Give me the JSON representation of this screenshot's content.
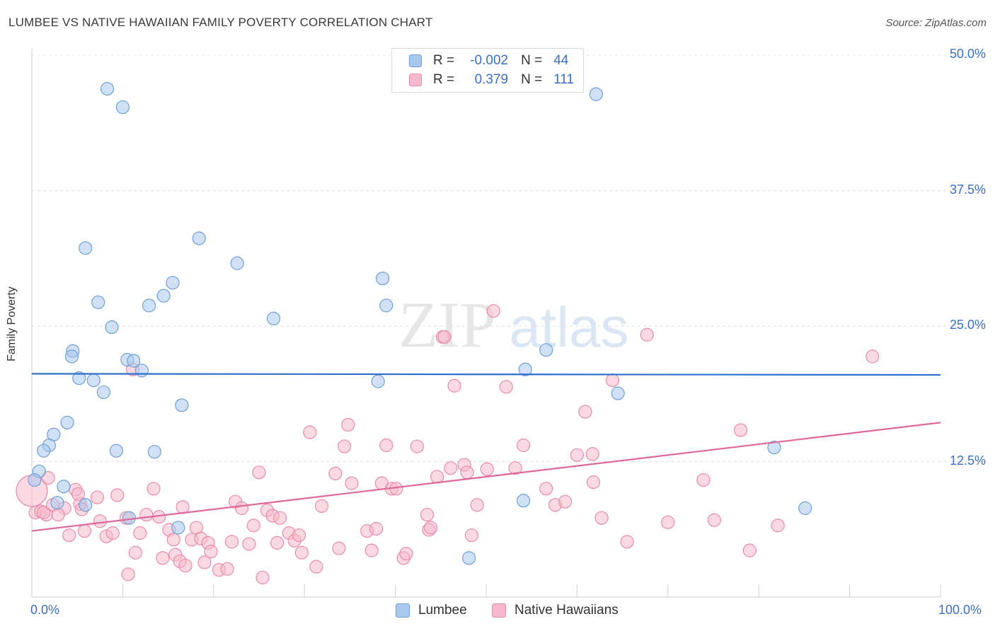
{
  "title": "LUMBEE VS NATIVE HAWAIIAN FAMILY POVERTY CORRELATION CHART",
  "source": "Source: ZipAtlas.com",
  "watermark_a": "ZIP",
  "watermark_b": "atlas",
  "legend": {
    "r_label": "R =",
    "n_label": "N =",
    "series": [
      {
        "name": "Lumbee",
        "r": "-0.002",
        "n": "44"
      },
      {
        "name": "Native Hawaiians",
        "r": "0.379",
        "n": "111"
      }
    ]
  },
  "chart_data": {
    "type": "scatter",
    "title": "LUMBEE VS NATIVE HAWAIIAN FAMILY POVERTY CORRELATION CHART",
    "xlabel": "",
    "ylabel": "Family Poverty",
    "xlim": [
      0,
      100
    ],
    "ylim": [
      0,
      50
    ],
    "x_tick_labels": [
      "0.0%",
      "100.0%"
    ],
    "y_ticks": [
      12.5,
      25.0,
      37.5,
      50.0
    ],
    "y_tick_labels": [
      "12.5%",
      "25.0%",
      "37.5%",
      "50.0%"
    ],
    "grid": true,
    "legend_position": "top-center",
    "colors": {
      "Lumbee": {
        "fill": "#a9c8ee",
        "stroke": "#6f9fd8",
        "line": "#2f6fcf"
      },
      "Native Hawaiians": {
        "fill": "#f6b9cc",
        "stroke": "#e98aa8",
        "line": "#e0679a"
      }
    },
    "series": [
      {
        "name": "Lumbee",
        "trend": {
          "x": [
            0,
            100
          ],
          "y": [
            20.6,
            20.5
          ]
        },
        "points": [
          [
            8.3,
            46.9
          ],
          [
            10.0,
            45.2
          ],
          [
            62.1,
            46.4
          ],
          [
            5.9,
            32.2
          ],
          [
            18.4,
            33.1
          ],
          [
            22.6,
            30.8
          ],
          [
            38.6,
            29.4
          ],
          [
            7.3,
            27.2
          ],
          [
            15.5,
            29.0
          ],
          [
            14.5,
            27.8
          ],
          [
            12.9,
            26.9
          ],
          [
            26.6,
            25.7
          ],
          [
            39.0,
            26.9
          ],
          [
            8.8,
            24.9
          ],
          [
            4.5,
            22.7
          ],
          [
            4.4,
            22.2
          ],
          [
            10.5,
            21.9
          ],
          [
            11.2,
            21.8
          ],
          [
            12.1,
            20.9
          ],
          [
            54.3,
            21.0
          ],
          [
            56.6,
            22.8
          ],
          [
            5.2,
            20.2
          ],
          [
            6.8,
            20.0
          ],
          [
            38.1,
            19.9
          ],
          [
            7.9,
            18.9
          ],
          [
            64.5,
            18.8
          ],
          [
            16.5,
            17.7
          ],
          [
            3.9,
            16.1
          ],
          [
            2.4,
            15.0
          ],
          [
            1.9,
            14.0
          ],
          [
            1.3,
            13.5
          ],
          [
            9.3,
            13.5
          ],
          [
            13.5,
            13.4
          ],
          [
            81.7,
            13.8
          ],
          [
            0.8,
            11.6
          ],
          [
            0.3,
            10.8
          ],
          [
            3.5,
            10.2
          ],
          [
            2.8,
            8.7
          ],
          [
            5.9,
            8.5
          ],
          [
            10.7,
            7.3
          ],
          [
            16.1,
            6.4
          ],
          [
            54.1,
            8.9
          ],
          [
            85.1,
            8.2
          ],
          [
            48.1,
            3.6
          ]
        ]
      },
      {
        "name": "Native Hawaiians",
        "trend": {
          "x": [
            0,
            100
          ],
          "y": [
            6.1,
            16.1
          ]
        },
        "points": [
          [
            0.0,
            9.8
          ],
          [
            0.4,
            7.8
          ],
          [
            1.0,
            7.9
          ],
          [
            1.6,
            7.6
          ],
          [
            1.8,
            11.0
          ],
          [
            1.3,
            7.8
          ],
          [
            2.3,
            8.5
          ],
          [
            3.6,
            8.2
          ],
          [
            2.9,
            7.6
          ],
          [
            4.1,
            5.7
          ],
          [
            5.3,
            8.6
          ],
          [
            5.8,
            6.1
          ],
          [
            4.8,
            9.9
          ],
          [
            5.1,
            9.5
          ],
          [
            5.5,
            8.1
          ],
          [
            7.2,
            9.2
          ],
          [
            7.5,
            7.0
          ],
          [
            8.2,
            5.6
          ],
          [
            8.9,
            5.9
          ],
          [
            9.4,
            9.4
          ],
          [
            10.4,
            7.3
          ],
          [
            10.6,
            2.1
          ],
          [
            11.4,
            4.1
          ],
          [
            11.9,
            5.9
          ],
          [
            12.6,
            7.6
          ],
          [
            13.4,
            10.0
          ],
          [
            14.0,
            7.4
          ],
          [
            14.4,
            3.6
          ],
          [
            15.1,
            6.2
          ],
          [
            15.6,
            5.3
          ],
          [
            15.8,
            3.9
          ],
          [
            16.3,
            3.3
          ],
          [
            16.6,
            8.3
          ],
          [
            16.9,
            2.9
          ],
          [
            17.6,
            5.3
          ],
          [
            18.1,
            6.4
          ],
          [
            18.6,
            5.4
          ],
          [
            19.0,
            3.2
          ],
          [
            19.4,
            5.0
          ],
          [
            19.7,
            4.2
          ],
          [
            20.6,
            2.5
          ],
          [
            21.5,
            2.6
          ],
          [
            22.0,
            5.1
          ],
          [
            22.4,
            8.8
          ],
          [
            23.1,
            8.2
          ],
          [
            23.9,
            4.9
          ],
          [
            24.4,
            6.6
          ],
          [
            25.0,
            11.5
          ],
          [
            25.4,
            1.8
          ],
          [
            25.9,
            8.0
          ],
          [
            26.5,
            7.5
          ],
          [
            27.0,
            5.0
          ],
          [
            27.3,
            7.3
          ],
          [
            28.3,
            5.9
          ],
          [
            28.9,
            5.2
          ],
          [
            29.4,
            5.7
          ],
          [
            29.7,
            4.1
          ],
          [
            30.6,
            15.2
          ],
          [
            31.3,
            2.8
          ],
          [
            31.9,
            8.4
          ],
          [
            33.4,
            11.4
          ],
          [
            33.8,
            4.5
          ],
          [
            34.4,
            13.9
          ],
          [
            34.8,
            15.9
          ],
          [
            35.2,
            10.5
          ],
          [
            36.9,
            6.1
          ],
          [
            37.4,
            4.3
          ],
          [
            37.9,
            6.3
          ],
          [
            38.5,
            10.5
          ],
          [
            39.0,
            14.0
          ],
          [
            39.6,
            10.0
          ],
          [
            40.1,
            10.0
          ],
          [
            40.9,
            3.6
          ],
          [
            41.2,
            4.0
          ],
          [
            42.4,
            13.9
          ],
          [
            43.5,
            7.6
          ],
          [
            43.7,
            6.2
          ],
          [
            43.9,
            6.4
          ],
          [
            44.6,
            11.1
          ],
          [
            45.2,
            24.0
          ],
          [
            45.4,
            24.0
          ],
          [
            46.1,
            11.9
          ],
          [
            46.5,
            19.5
          ],
          [
            47.6,
            12.2
          ],
          [
            47.9,
            11.5
          ],
          [
            48.4,
            5.7
          ],
          [
            49.0,
            8.5
          ],
          [
            50.1,
            11.8
          ],
          [
            50.8,
            26.4
          ],
          [
            52.2,
            19.4
          ],
          [
            53.2,
            11.9
          ],
          [
            54.1,
            14.0
          ],
          [
            56.6,
            10.0
          ],
          [
            57.6,
            8.5
          ],
          [
            58.7,
            8.8
          ],
          [
            60.0,
            13.1
          ],
          [
            60.9,
            17.1
          ],
          [
            61.7,
            13.2
          ],
          [
            61.8,
            10.6
          ],
          [
            62.7,
            7.3
          ],
          [
            63.9,
            20.0
          ],
          [
            65.5,
            5.1
          ],
          [
            67.7,
            24.2
          ],
          [
            70.0,
            6.9
          ],
          [
            73.9,
            10.8
          ],
          [
            75.1,
            7.1
          ],
          [
            78.0,
            15.4
          ],
          [
            79.0,
            4.3
          ],
          [
            82.1,
            6.6
          ],
          [
            92.5,
            22.2
          ],
          [
            11.1,
            21.0
          ]
        ]
      }
    ]
  }
}
